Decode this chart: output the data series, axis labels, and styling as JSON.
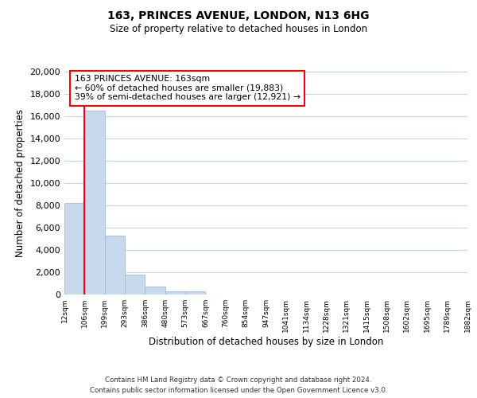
{
  "title_line1": "163, PRINCES AVENUE, LONDON, N13 6HG",
  "title_line2": "Size of property relative to detached houses in London",
  "xlabel": "Distribution of detached houses by size in London",
  "ylabel": "Number of detached properties",
  "bar_values": [
    8200,
    16500,
    5300,
    1800,
    750,
    280,
    280,
    0,
    0,
    0,
    0,
    0,
    0,
    0,
    0,
    0,
    0,
    0,
    0,
    0
  ],
  "bar_labels": [
    "12sqm",
    "106sqm",
    "199sqm",
    "293sqm",
    "386sqm",
    "480sqm",
    "573sqm",
    "667sqm",
    "760sqm",
    "854sqm",
    "947sqm",
    "1041sqm",
    "1134sqm",
    "1228sqm",
    "1321sqm",
    "1415sqm",
    "1508sqm",
    "1602sqm",
    "1695sqm",
    "1789sqm",
    "1882sqm"
  ],
  "bar_color": "#c8d9ed",
  "bar_edge_color": "#a0b8d8",
  "vline_x": 1,
  "vline_color": "red",
  "annotation_title": "163 PRINCES AVENUE: 163sqm",
  "annotation_line1": "← 60% of detached houses are smaller (19,883)",
  "annotation_line2": "39% of semi-detached houses are larger (12,921) →",
  "annotation_box_color": "white",
  "annotation_box_edge": "red",
  "ylim": [
    0,
    20000
  ],
  "yticks": [
    0,
    2000,
    4000,
    6000,
    8000,
    10000,
    12000,
    14000,
    16000,
    18000,
    20000
  ],
  "footer_line1": "Contains HM Land Registry data © Crown copyright and database right 2024.",
  "footer_line2": "Contains public sector information licensed under the Open Government Licence v3.0.",
  "bg_color": "#ffffff",
  "grid_color": "#c8d4e0"
}
